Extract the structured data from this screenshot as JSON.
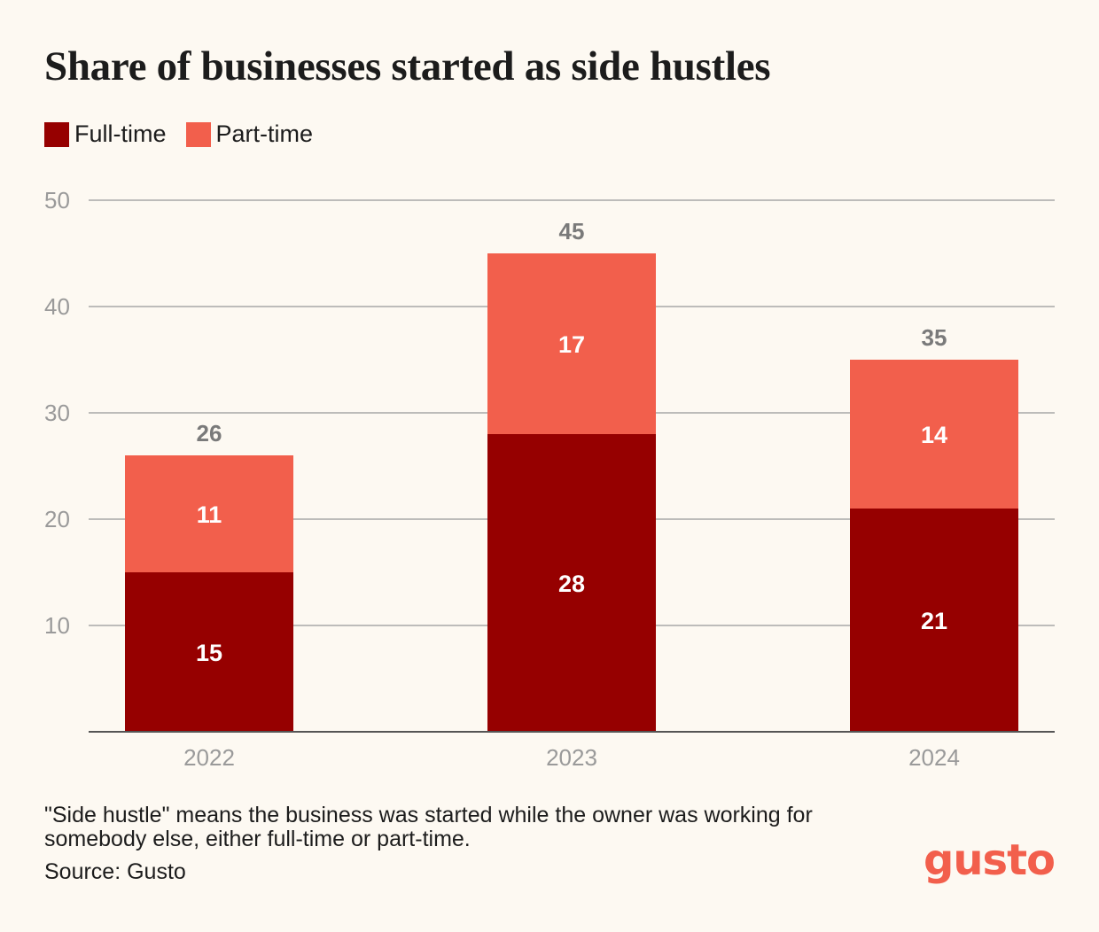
{
  "title": "Share of businesses started as side hustles",
  "note": "\"Side hustle\" means the business was started while the owner was working for somebody else, either full-time or part-time.",
  "source": "Source: Gusto",
  "logo": "gusto",
  "colors": {
    "background": "#fdf9f2",
    "full_time": "#960000",
    "part_time": "#f25f4c",
    "grid": "#a8a8a8",
    "axis_text": "#9a9a9a",
    "total_label": "#7a7a7a",
    "logo": "#f25f4c"
  },
  "chart_data": {
    "type": "bar",
    "stacked": true,
    "title": "Share of businesses started as side hustles",
    "categories": [
      "2022",
      "2023",
      "2024"
    ],
    "series": [
      {
        "name": "Full-time",
        "values": [
          15,
          28,
          21
        ]
      },
      {
        "name": "Part-time",
        "values": [
          11,
          17,
          14
        ]
      }
    ],
    "totals": [
      26,
      45,
      35
    ],
    "ylim": [
      0,
      50
    ],
    "yticks": [
      10,
      20,
      30,
      40,
      50
    ],
    "grid": true,
    "legend_position": "top-left"
  }
}
